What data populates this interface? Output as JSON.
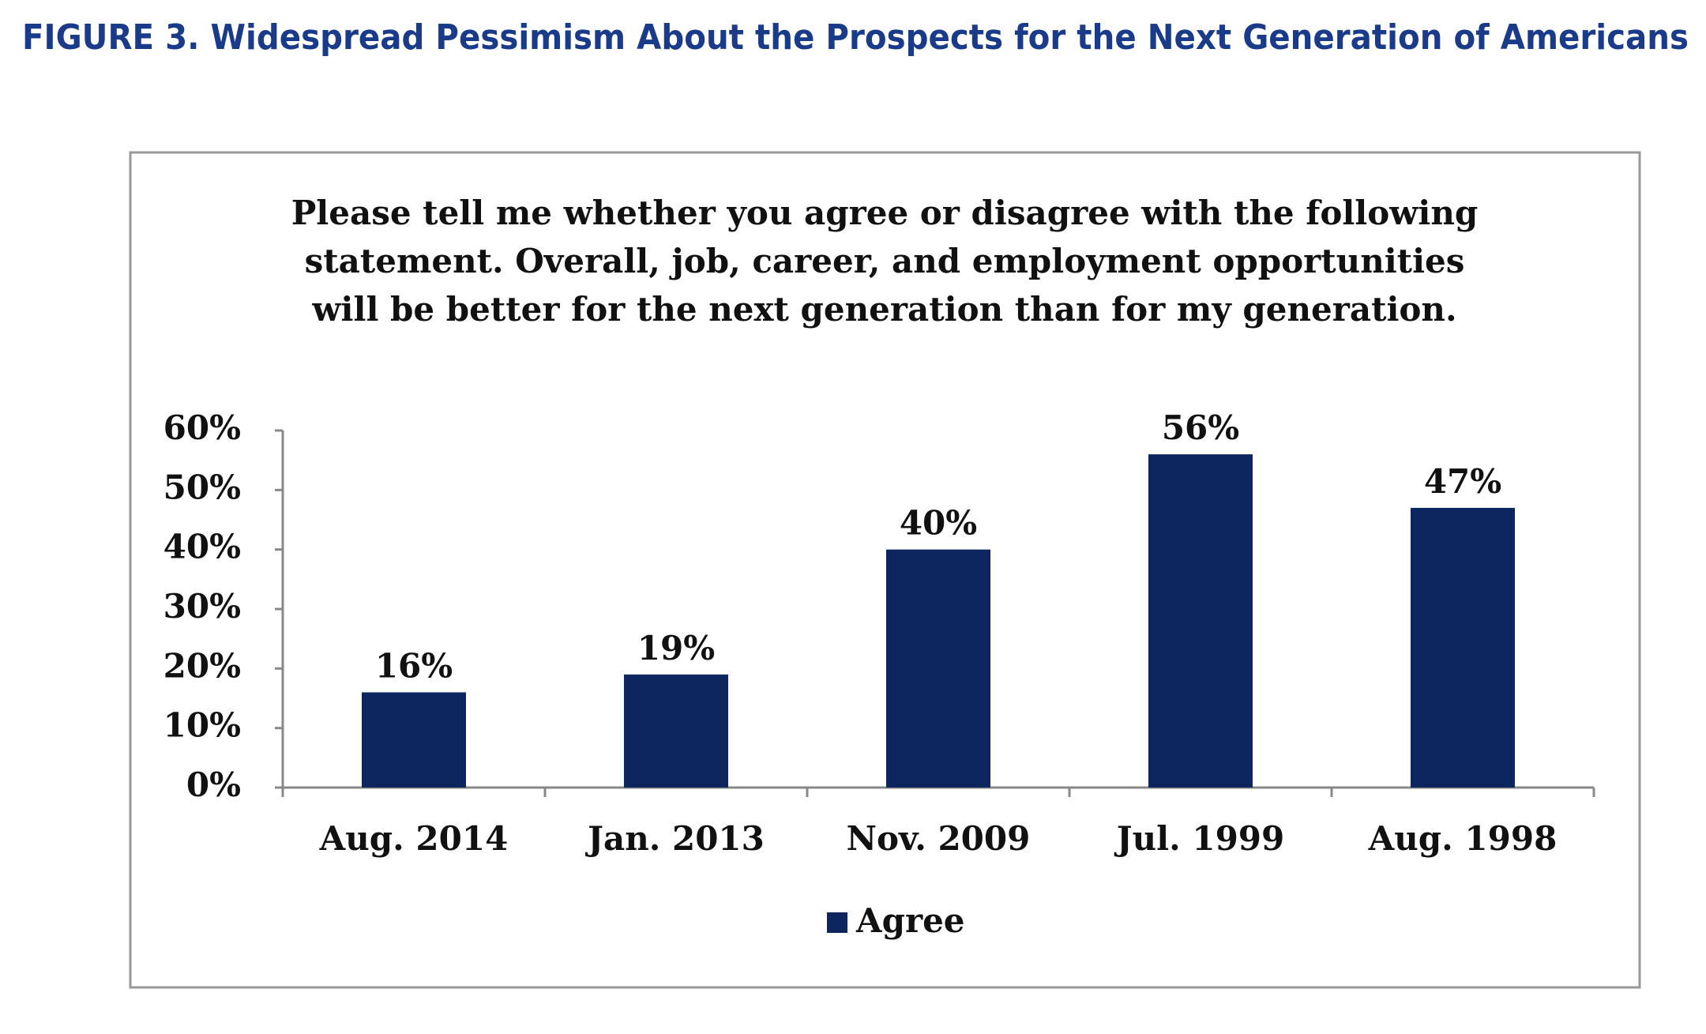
{
  "chart_data": {
    "type": "bar",
    "title": "FIGURE 3. Widespread Pessimism About the Prospects for the Next Generation of Americans",
    "subtitle": [
      "Please tell me whether you agree or disagree with the following",
      "statement. Overall, job, career, and employment opportunities",
      "will be better for the next generation than for my generation."
    ],
    "categories": [
      "Aug. 2014",
      "Jan.  2013",
      "Nov. 2009",
      "Jul. 1999",
      "Aug. 1998"
    ],
    "series": [
      {
        "name": "Agree",
        "color": "#0d2660",
        "values": [
          16,
          19,
          40,
          56,
          47
        ],
        "value_labels": [
          "16%",
          "19%",
          "40%",
          "56%",
          "47%"
        ]
      }
    ],
    "ylim": [
      0,
      60
    ],
    "yticks": [
      {
        "value": 0,
        "label": "0%"
      },
      {
        "value": 10,
        "label": "10%"
      },
      {
        "value": 20,
        "label": "20%"
      },
      {
        "value": 30,
        "label": "30%"
      },
      {
        "value": 40,
        "label": "40%"
      },
      {
        "value": 50,
        "label": "50%"
      },
      {
        "value": 60,
        "label": "60%"
      }
    ],
    "legend": "bottom"
  }
}
